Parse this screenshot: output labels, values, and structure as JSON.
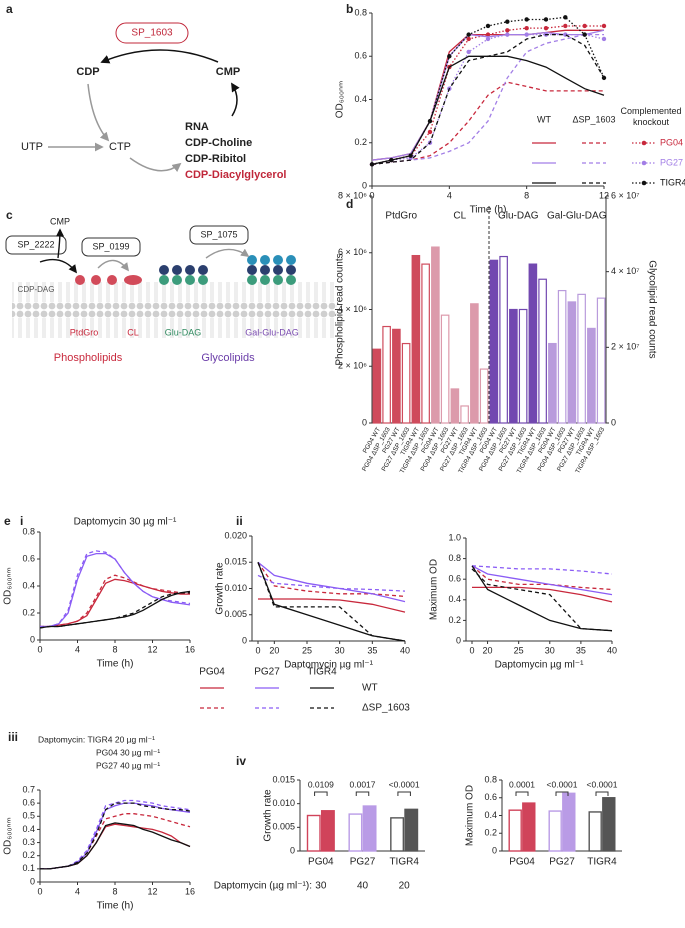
{
  "labels": {
    "a": "a",
    "b": "b",
    "c": "c",
    "d": "d",
    "e": "e",
    "i": "i",
    "ii": "ii",
    "iii": "iii",
    "iv": "iv"
  },
  "diagram_a": {
    "enzyme": "SP_1603",
    "cdp": "CDP",
    "cmp": "CMP",
    "utp": "UTP",
    "ctp": "CTP",
    "products": [
      "RNA",
      "CDP-Choline",
      "CDP-Ribitol",
      "CDP-Diacylglycerol"
    ]
  },
  "diagram_c": {
    "sp2222": "SP_2222",
    "cmp": "CMP",
    "sp0199": "SP_0199",
    "sp1075": "SP_1075",
    "cdpdag": "CDP-DAG",
    "ptdgro": "PtdGro",
    "cl": "CL",
    "gludag": "Glu-DAG",
    "galgludag": "Gal-Glu-DAG",
    "phospholipids": "Phospholipids",
    "glycolipids": "Glycolipids"
  },
  "chart_data": [
    {
      "type": "line",
      "x_label": "Time (h)",
      "y_label": "OD₆₀₀ₙₘ",
      "legend": "b",
      "x": [
        0,
        1,
        2,
        3,
        4,
        5,
        6,
        7,
        8,
        9,
        10,
        11,
        12
      ],
      "xlim": [
        0,
        12
      ],
      "xticks": [
        0,
        4,
        8,
        12
      ],
      "ylim": [
        0,
        0.8
      ],
      "yticks": [
        0,
        0.2,
        0.4,
        0.6,
        0.8
      ],
      "series": [
        {
          "group": "WT",
          "strain": "PG04",
          "color": "#c8283c",
          "dash": "solid",
          "values": [
            0.12,
            0.13,
            0.15,
            0.3,
            0.62,
            0.7,
            0.7,
            0.7,
            0.7,
            0.71,
            0.72,
            0.72,
            0.72
          ]
        },
        {
          "group": "ΔSP_1603",
          "strain": "PG04",
          "color": "#c8283c",
          "dash": "dashed",
          "values": [
            0.1,
            0.11,
            0.12,
            0.14,
            0.2,
            0.3,
            0.42,
            0.48,
            0.46,
            0.44,
            0.44,
            0.44,
            0.44
          ]
        },
        {
          "group": "Complemented knockout",
          "strain": "PG04",
          "color": "#c8283c",
          "dash": "dotted",
          "marker": true,
          "values": [
            0.1,
            0.12,
            0.14,
            0.25,
            0.55,
            0.68,
            0.7,
            0.72,
            0.73,
            0.73,
            0.74,
            0.74,
            0.74
          ]
        },
        {
          "group": "WT",
          "strain": "PG27",
          "color": "#a27ee6",
          "dash": "solid",
          "values": [
            0.12,
            0.13,
            0.15,
            0.3,
            0.6,
            0.7,
            0.69,
            0.7,
            0.7,
            0.71,
            0.7,
            0.7,
            0.72
          ]
        },
        {
          "group": "ΔSP_1603",
          "strain": "PG27",
          "color": "#a27ee6",
          "dash": "dashed",
          "values": [
            0.1,
            0.11,
            0.12,
            0.13,
            0.16,
            0.2,
            0.3,
            0.5,
            0.62,
            0.66,
            0.68,
            0.7,
            0.7
          ]
        },
        {
          "group": "Complemented knockout",
          "strain": "PG27",
          "color": "#a27ee6",
          "dash": "dotted",
          "marker": true,
          "values": [
            0.1,
            0.12,
            0.13,
            0.2,
            0.45,
            0.62,
            0.68,
            0.7,
            0.7,
            0.7,
            0.7,
            0.7,
            0.68
          ]
        },
        {
          "group": "WT",
          "strain": "TIGR4",
          "color": "#111111",
          "dash": "solid",
          "values": [
            0.1,
            0.12,
            0.14,
            0.3,
            0.55,
            0.6,
            0.6,
            0.6,
            0.58,
            0.55,
            0.5,
            0.45,
            0.42
          ]
        },
        {
          "group": "ΔSP_1603",
          "strain": "TIGR4",
          "color": "#111111",
          "dash": "dashed",
          "values": [
            0.1,
            0.11,
            0.12,
            0.2,
            0.45,
            0.58,
            0.6,
            0.62,
            0.68,
            0.7,
            0.7,
            0.65,
            0.5
          ]
        },
        {
          "group": "Complemented knockout",
          "strain": "TIGR4",
          "color": "#111111",
          "dash": "dotted",
          "marker": true,
          "values": [
            0.1,
            0.12,
            0.14,
            0.3,
            0.6,
            0.7,
            0.74,
            0.76,
            0.77,
            0.77,
            0.78,
            0.7,
            0.5
          ]
        }
      ]
    },
    {
      "type": "bar",
      "y_label": "Phospholipid read counts",
      "y2_label": "Glycolipid read counts",
      "divider": true,
      "categories": [
        "PG04 WT",
        "PG04 ΔSP_1603",
        "PG27 WT",
        "PG27 ΔSP_1603",
        "TIGR4 WT",
        "TIGR4 ΔSP_1603"
      ],
      "ylim": [
        0,
        8000000
      ],
      "yticks": [
        0,
        {
          "value": 2000000,
          "label": "2 × 10⁶"
        },
        {
          "value": 4000000,
          "label": "4 × 10⁶"
        },
        {
          "value": 6000000,
          "label": "6 × 10⁶"
        },
        {
          "value": 8000000,
          "label": "8 × 10⁶"
        }
      ],
      "y2lim": [
        0,
        60000000
      ],
      "y2ticks": [
        0,
        {
          "value": 20000000,
          "label": "2 × 10⁷"
        },
        {
          "value": 40000000,
          "label": "4 × 10⁷"
        },
        {
          "value": 60000000,
          "label": "6 × 10⁷"
        }
      ],
      "series": [
        {
          "name": "PtdGro",
          "color": "#cf4b5c",
          "values": [
            2600000,
            3400000,
            3300000,
            2800000,
            5900000,
            5600000
          ]
        },
        {
          "name": "CL",
          "color": "#dc9aab",
          "values": [
            6200000,
            3800000,
            1200000,
            600000,
            4200000,
            1900000
          ]
        },
        {
          "name": "Glu-DAG",
          "color": "#7248b0",
          "axis": "y2",
          "values": [
            43000000,
            44000000,
            30000000,
            30000000,
            42000000,
            38000000
          ]
        },
        {
          "name": "Gal-Glu-DAG",
          "color": "#b99bdc",
          "axis": "y2",
          "values": [
            21000000,
            35000000,
            32000000,
            34000000,
            25000000,
            33000000
          ]
        }
      ]
    },
    {
      "type": "line",
      "title": "Daptomycin 30 µg ml⁻¹",
      "x_label": "Time (h)",
      "y_label": "OD₆₀₀ₙₘ",
      "legend": "e",
      "x": [
        0,
        1,
        2,
        3,
        4,
        5,
        6,
        7,
        8,
        9,
        10,
        11,
        12,
        13,
        14,
        15,
        16
      ],
      "xlim": [
        0,
        16
      ],
      "xticks": [
        0,
        4,
        8,
        12,
        16
      ],
      "ylim": [
        0,
        0.8
      ],
      "yticks": [
        0,
        0.2,
        0.4,
        0.6,
        0.8
      ],
      "series": [
        {
          "group": "WT",
          "strain": "PG04",
          "color": "#c8283c",
          "dash": "solid",
          "values": [
            0.1,
            0.1,
            0.11,
            0.12,
            0.14,
            0.18,
            0.3,
            0.42,
            0.45,
            0.44,
            0.42,
            0.4,
            0.38,
            0.36,
            0.35,
            0.34,
            0.34
          ]
        },
        {
          "group": "ΔSP_1603",
          "strain": "PG04",
          "color": "#c8283c",
          "dash": "dashed",
          "values": [
            0.1,
            0.1,
            0.11,
            0.12,
            0.14,
            0.2,
            0.32,
            0.45,
            0.48,
            0.46,
            0.43,
            0.4,
            0.38,
            0.37,
            0.36,
            0.35,
            0.35
          ]
        },
        {
          "group": "WT",
          "strain": "PG27",
          "color": "#8a5cf5",
          "dash": "solid",
          "values": [
            0.1,
            0.1,
            0.12,
            0.2,
            0.45,
            0.62,
            0.64,
            0.64,
            0.6,
            0.5,
            0.42,
            0.36,
            0.32,
            0.3,
            0.28,
            0.27,
            0.26
          ]
        },
        {
          "group": "ΔSP_1603",
          "strain": "PG27",
          "color": "#8a5cf5",
          "dash": "dashed",
          "values": [
            0.1,
            0.1,
            0.12,
            0.22,
            0.48,
            0.64,
            0.66,
            0.65,
            0.6,
            0.5,
            0.42,
            0.36,
            0.32,
            0.3,
            0.29,
            0.28,
            0.27
          ]
        },
        {
          "group": "WT",
          "strain": "TIGR4",
          "color": "#111111",
          "dash": "solid",
          "values": [
            0.09,
            0.1,
            0.1,
            0.11,
            0.12,
            0.13,
            0.14,
            0.15,
            0.16,
            0.17,
            0.19,
            0.22,
            0.26,
            0.3,
            0.33,
            0.35,
            0.36
          ]
        },
        {
          "group": "ΔSP_1603",
          "strain": "TIGR4",
          "color": "#111111",
          "dash": "dashed",
          "values": [
            0.09,
            0.1,
            0.1,
            0.11,
            0.12,
            0.13,
            0.14,
            0.15,
            0.16,
            0.18,
            0.2,
            0.24,
            0.28,
            0.32,
            0.34,
            0.35,
            0.35
          ]
        }
      ]
    },
    {
      "type": "line",
      "x_label": "Daptomycin µg ml⁻¹",
      "y_label": "Growth rate",
      "axis_break": true,
      "x": [
        0,
        20,
        25,
        30,
        35,
        40
      ],
      "xlim": [
        0,
        40
      ],
      "xticks": [
        0,
        20,
        25,
        30,
        35,
        40
      ],
      "ylim": [
        0,
        0.02
      ],
      "yticks": [
        0,
        0.005,
        {
          "value": 0.01,
          "label": "0.010"
        },
        0.015,
        {
          "value": 0.02,
          "label": "0.020"
        }
      ],
      "series": [
        {
          "color": "#c8283c",
          "dash": "solid",
          "values": [
            0.008,
            0.008,
            0.008,
            0.0078,
            0.007,
            0.0055
          ]
        },
        {
          "color": "#c8283c",
          "dash": "dashed",
          "values": [
            0.015,
            0.0105,
            0.0095,
            0.009,
            0.009,
            0.0085
          ]
        },
        {
          "color": "#8a5cf5",
          "dash": "solid",
          "values": [
            0.015,
            0.0125,
            0.011,
            0.01,
            0.009,
            0.0075
          ]
        },
        {
          "color": "#8a5cf5",
          "dash": "dashed",
          "values": [
            0.0125,
            0.011,
            0.0105,
            0.01,
            0.0098,
            0.0095
          ]
        },
        {
          "color": "#111111",
          "dash": "solid",
          "values": [
            0.015,
            0.007,
            0.005,
            0.003,
            0.001,
            0
          ]
        },
        {
          "color": "#111111",
          "dash": "dashed",
          "values": [
            0.015,
            0.0065,
            0.0065,
            0.0065,
            0.001,
            0
          ]
        }
      ]
    },
    {
      "type": "line",
      "x_label": "Daptomycin µg ml⁻¹",
      "y_label": "Maximum OD",
      "axis_break": true,
      "x": [
        0,
        20,
        25,
        30,
        35,
        40
      ],
      "xlim": [
        0,
        40
      ],
      "xticks": [
        0,
        20,
        25,
        30,
        35,
        40
      ],
      "ylim": [
        0,
        1
      ],
      "yticks": [
        0,
        0.2,
        0.4,
        0.6,
        0.8,
        {
          "value": 1,
          "label": "1.0"
        }
      ],
      "series": [
        {
          "color": "#c8283c",
          "dash": "solid",
          "values": [
            0.52,
            0.52,
            0.52,
            0.5,
            0.45,
            0.38
          ]
        },
        {
          "color": "#c8283c",
          "dash": "dashed",
          "values": [
            0.73,
            0.6,
            0.55,
            0.55,
            0.52,
            0.5
          ]
        },
        {
          "color": "#8a5cf5",
          "dash": "solid",
          "values": [
            0.73,
            0.65,
            0.6,
            0.55,
            0.5,
            0.45
          ]
        },
        {
          "color": "#8a5cf5",
          "dash": "dashed",
          "values": [
            0.73,
            0.72,
            0.7,
            0.7,
            0.68,
            0.65
          ]
        },
        {
          "color": "#111111",
          "dash": "solid",
          "values": [
            0.73,
            0.5,
            0.35,
            0.2,
            0.12,
            0.1
          ]
        },
        {
          "color": "#111111",
          "dash": "dashed",
          "values": [
            0.7,
            0.55,
            0.5,
            0.45,
            0.12,
            0.1
          ]
        }
      ]
    },
    {
      "type": "line",
      "x_label": "Time (h)",
      "y_label": "OD₆₀₀ₙₘ",
      "annotation": [
        "Daptomycin: TIGR4 20 µg ml⁻¹",
        "PG04 30 µg ml⁻¹",
        "PG27 40 µg ml⁻¹"
      ],
      "x": [
        0,
        1,
        2,
        3,
        4,
        5,
        6,
        7,
        8,
        9,
        10,
        11,
        12,
        13,
        14,
        15,
        16
      ],
      "xlim": [
        0,
        16
      ],
      "xticks": [
        0,
        4,
        8,
        12,
        16
      ],
      "ylim": [
        0,
        0.7
      ],
      "yticks": [
        0,
        0.1,
        0.2,
        0.3,
        0.4,
        0.5,
        0.6,
        0.7
      ],
      "series": [
        {
          "color": "#c8283c",
          "dash": "solid",
          "values": [
            0.1,
            0.1,
            0.11,
            0.12,
            0.14,
            0.2,
            0.3,
            0.42,
            0.44,
            0.43,
            0.42,
            0.41,
            0.4,
            0.38,
            0.35,
            0.3,
            0.27
          ]
        },
        {
          "color": "#c8283c",
          "dash": "dashed",
          "values": [
            0.1,
            0.1,
            0.11,
            0.12,
            0.15,
            0.22,
            0.35,
            0.48,
            0.5,
            0.52,
            0.52,
            0.51,
            0.5,
            0.48,
            0.46,
            0.44,
            0.42
          ]
        },
        {
          "color": "#8a5cf5",
          "dash": "solid",
          "values": [
            0.1,
            0.1,
            0.11,
            0.12,
            0.15,
            0.22,
            0.38,
            0.55,
            0.58,
            0.6,
            0.6,
            0.59,
            0.58,
            0.56,
            0.55,
            0.54,
            0.53
          ]
        },
        {
          "color": "#8a5cf5",
          "dash": "dashed",
          "values": [
            0.1,
            0.1,
            0.11,
            0.12,
            0.16,
            0.24,
            0.4,
            0.58,
            0.6,
            0.62,
            0.62,
            0.61,
            0.6,
            0.58,
            0.57,
            0.56,
            0.55
          ]
        },
        {
          "color": "#111111",
          "dash": "solid",
          "values": [
            0.1,
            0.1,
            0.11,
            0.12,
            0.14,
            0.2,
            0.3,
            0.43,
            0.45,
            0.44,
            0.43,
            0.4,
            0.38,
            0.35,
            0.32,
            0.3,
            0.27
          ]
        },
        {
          "color": "#111111",
          "dash": "dashed",
          "values": [
            0.1,
            0.1,
            0.11,
            0.12,
            0.15,
            0.22,
            0.36,
            0.55,
            0.6,
            0.6,
            0.6,
            0.58,
            0.57,
            0.56,
            0.55,
            0.55,
            0.54
          ]
        }
      ]
    },
    {
      "type": "grouped_bar",
      "y_label": "Growth rate",
      "categories": [
        "PG04",
        "PG27",
        "TIGR4"
      ],
      "colors": [
        "#d0435a",
        "#b99be6",
        "#555555"
      ],
      "ylim": [
        0,
        0.015
      ],
      "yticks": [
        0,
        0.005,
        {
          "value": 0.01,
          "label": "0.010"
        },
        0.015
      ],
      "pvalues": [
        "0.0109",
        "0.0017",
        "<0.0001"
      ],
      "dose_label": "Daptomycin (µg ml⁻¹):",
      "doses": [
        30,
        40,
        20
      ],
      "series": [
        {
          "style": "open",
          "values": [
            0.0075,
            0.0078,
            0.007
          ]
        },
        {
          "style": "filled",
          "values": [
            0.0085,
            0.0095,
            0.0088
          ]
        }
      ]
    },
    {
      "type": "grouped_bar",
      "y_label": "Maximum OD",
      "categories": [
        "PG04",
        "PG27",
        "TIGR4"
      ],
      "colors": [
        "#d0435a",
        "#b99be6",
        "#555555"
      ],
      "ylim": [
        0,
        0.8
      ],
      "yticks": [
        0,
        0.2,
        0.4,
        0.6,
        0.8
      ],
      "pvalues": [
        "0.0001",
        "<0.0001",
        "<0.0001"
      ],
      "series": [
        {
          "style": "open",
          "values": [
            0.46,
            0.45,
            0.44
          ]
        },
        {
          "style": "filled",
          "values": [
            0.54,
            0.65,
            0.6
          ]
        }
      ]
    }
  ]
}
